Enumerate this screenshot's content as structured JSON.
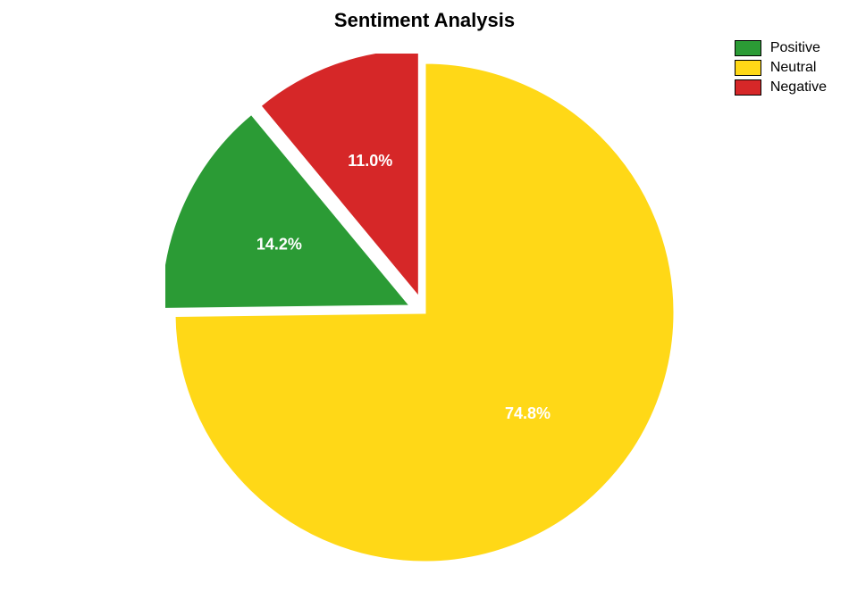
{
  "chart": {
    "type": "pie",
    "title": "Sentiment Analysis",
    "title_fontsize": 22,
    "title_fontweight": "bold",
    "background_color": "#ffffff",
    "aspect_width": 950,
    "aspect_height": 662,
    "slice_label_fontsize": 18,
    "slice_label_color": "#ffffff",
    "slice_border_color": "#ffffff",
    "slice_border_width": 3,
    "explode_offset": 0.06,
    "slices": [
      {
        "name": "Neutral",
        "value": 74.8,
        "label": "74.8%",
        "color": "#ffd817",
        "exploded": false
      },
      {
        "name": "Positive",
        "value": 14.2,
        "label": "14.2%",
        "color": "#2b9b35",
        "exploded": true
      },
      {
        "name": "Negative",
        "value": 11.0,
        "label": "11.0%",
        "color": "#d62728",
        "exploded": true
      }
    ],
    "legend": {
      "position": "top-right",
      "fontsize": 16,
      "items": [
        {
          "label": "Positive",
          "color": "#2b9b35"
        },
        {
          "label": "Neutral",
          "color": "#ffd817"
        },
        {
          "label": "Negative",
          "color": "#d62728"
        }
      ]
    }
  }
}
